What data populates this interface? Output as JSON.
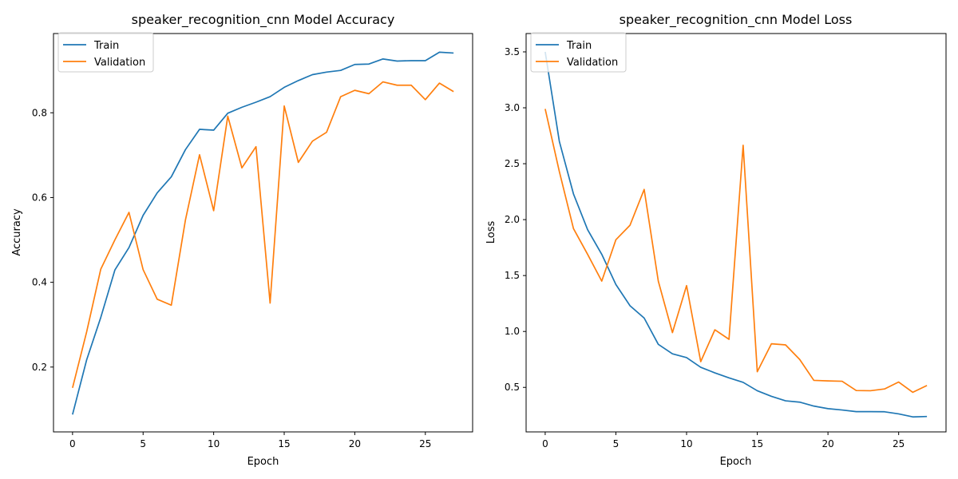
{
  "colors": {
    "train": "#1f77b4",
    "validation": "#ff7f0e"
  },
  "chart_data": [
    {
      "type": "line",
      "title": "speaker_recognition_cnn Model Accuracy",
      "xlabel": "Epoch",
      "ylabel": "Accuracy",
      "xlim": [
        -1.35,
        28.35
      ],
      "ylim": [
        0.047,
        0.987
      ],
      "xticks": [
        0,
        5,
        10,
        15,
        20,
        25
      ],
      "yticks": [
        0.2,
        0.4,
        0.6,
        0.8
      ],
      "legend": {
        "placement": "upper-left"
      },
      "x": [
        0,
        1,
        2,
        3,
        4,
        5,
        6,
        7,
        8,
        9,
        10,
        11,
        12,
        13,
        14,
        15,
        16,
        17,
        18,
        19,
        20,
        21,
        22,
        23,
        24,
        25,
        26,
        27
      ],
      "series": [
        {
          "name": "Train",
          "color_key": "train",
          "values": [
            0.088,
            0.217,
            0.317,
            0.429,
            0.482,
            0.558,
            0.611,
            0.649,
            0.713,
            0.761,
            0.759,
            0.799,
            0.813,
            0.825,
            0.838,
            0.86,
            0.876,
            0.89,
            0.896,
            0.9,
            0.914,
            0.915,
            0.927,
            0.922,
            0.923,
            0.923,
            0.943,
            0.941
          ]
        },
        {
          "name": "Validation",
          "color_key": "validation",
          "values": [
            0.151,
            0.283,
            0.431,
            0.5,
            0.565,
            0.43,
            0.36,
            0.346,
            0.547,
            0.701,
            0.569,
            0.792,
            0.67,
            0.72,
            0.351,
            0.816,
            0.683,
            0.733,
            0.754,
            0.838,
            0.853,
            0.845,
            0.873,
            0.865,
            0.865,
            0.831,
            0.87,
            0.85
          ]
        }
      ]
    },
    {
      "type": "line",
      "title": "speaker_recognition_cnn Model Loss",
      "xlabel": "Epoch",
      "ylabel": "Loss",
      "xlim": [
        -1.35,
        28.35
      ],
      "ylim": [
        0.102,
        3.664
      ],
      "xticks": [
        0,
        5,
        10,
        15,
        20,
        25
      ],
      "yticks": [
        0.5,
        1.0,
        1.5,
        2.0,
        2.5,
        3.0,
        3.5
      ],
      "ytick_labels": [
        "0.5",
        "1.0",
        "1.5",
        "2.0",
        "2.5",
        "3.0",
        "3.5"
      ],
      "legend": {
        "placement": "upper-left"
      },
      "x": [
        0,
        1,
        2,
        3,
        4,
        5,
        6,
        7,
        8,
        9,
        10,
        11,
        12,
        13,
        14,
        15,
        16,
        17,
        18,
        19,
        20,
        21,
        22,
        23,
        24,
        25,
        26,
        27
      ],
      "series": [
        {
          "name": "Train",
          "color_key": "train",
          "values": [
            3.5,
            2.7,
            2.23,
            1.91,
            1.69,
            1.42,
            1.23,
            1.12,
            0.885,
            0.8,
            0.766,
            0.68,
            0.63,
            0.585,
            0.545,
            0.47,
            0.42,
            0.38,
            0.368,
            0.333,
            0.31,
            0.298,
            0.283,
            0.283,
            0.282,
            0.263,
            0.236,
            0.24
          ]
        },
        {
          "name": "Validation",
          "color_key": "validation",
          "values": [
            2.99,
            2.43,
            1.92,
            1.69,
            1.45,
            1.82,
            1.95,
            2.27,
            1.45,
            0.99,
            1.41,
            0.73,
            1.015,
            0.93,
            2.665,
            0.64,
            0.89,
            0.88,
            0.75,
            0.563,
            0.558,
            0.555,
            0.472,
            0.47,
            0.486,
            0.548,
            0.456,
            0.517
          ]
        }
      ]
    }
  ]
}
